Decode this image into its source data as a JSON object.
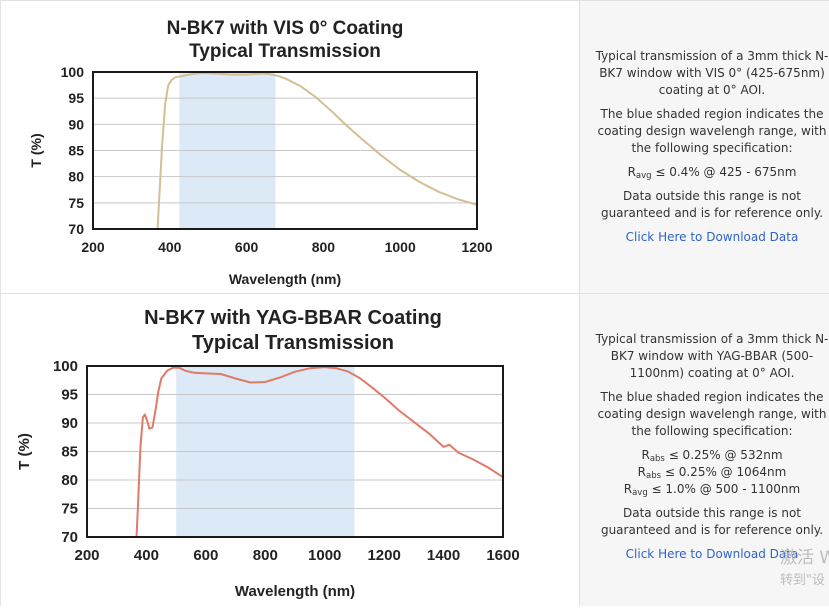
{
  "chart_data": [
    {
      "type": "line",
      "title": "N-BK7 with VIS 0° Coating",
      "subtitle": "Typical Transmission",
      "xlabel": "Wavelength (nm)",
      "ylabel": "T (%)",
      "xlim": [
        200,
        1200
      ],
      "ylim": [
        70,
        100
      ],
      "xticks": [
        200,
        400,
        600,
        800,
        1000,
        1200
      ],
      "yticks": [
        70,
        75,
        80,
        85,
        90,
        95,
        100
      ],
      "grid": "horizontal",
      "shaded_band": [
        425,
        675
      ],
      "colors": {
        "line": "#d4bf94",
        "band": "#dce9f6",
        "grid": "#c8c8c8"
      },
      "series": [
        {
          "x": [
            365,
            372,
            380,
            388,
            396,
            405,
            415,
            430,
            450,
            480,
            520,
            560,
            600,
            640,
            660,
            680,
            700,
            740,
            780,
            820,
            860,
            900,
            950,
            1000,
            1050,
            1100,
            1150,
            1200
          ],
          "y": [
            66,
            75,
            86,
            94,
            97.5,
            98.5,
            99,
            99.2,
            99.5,
            99.8,
            99.7,
            99.5,
            99.5,
            99.7,
            99.6,
            99.3,
            98.8,
            97.3,
            95.2,
            92.6,
            89.8,
            87.2,
            84.1,
            81.3,
            79,
            77.1,
            75.7,
            74.6
          ]
        }
      ]
    },
    {
      "type": "line",
      "title": "N-BK7 with YAG-BBAR Coating",
      "subtitle": "Typical Transmission",
      "xlabel": "Wavelength (nm)",
      "ylabel": "T (%)",
      "xlim": [
        200,
        1600
      ],
      "ylim": [
        70,
        100
      ],
      "xticks": [
        200,
        400,
        600,
        800,
        1000,
        1200,
        1400,
        1600
      ],
      "yticks": [
        70,
        75,
        80,
        85,
        90,
        95,
        100
      ],
      "grid": "horizontal",
      "shaded_band": [
        500,
        1100
      ],
      "colors": {
        "line": "#e07a6a",
        "band": "#dce9f6",
        "grid": "#c8c8c8"
      },
      "series": [
        {
          "x": [
            365,
            372,
            380,
            388,
            395,
            402,
            410,
            420,
            430,
            440,
            450,
            470,
            490,
            510,
            530,
            560,
            600,
            650,
            700,
            750,
            800,
            850,
            900,
            950,
            1000,
            1040,
            1080,
            1120,
            1160,
            1200,
            1250,
            1300,
            1350,
            1400,
            1420,
            1450,
            1500,
            1550,
            1600
          ],
          "y": [
            68,
            76,
            86,
            91,
            91.5,
            90.5,
            89,
            89.2,
            92,
            95.5,
            97.8,
            99.2,
            99.7,
            99.7,
            99.2,
            98.8,
            98.7,
            98.6,
            97.8,
            97.1,
            97.2,
            98,
            99,
            99.6,
            99.8,
            99.6,
            99,
            97.8,
            96.2,
            94.5,
            92.2,
            90.2,
            88.2,
            85.8,
            86.2,
            84.8,
            83.6,
            82.2,
            80.5
          ]
        }
      ]
    }
  ],
  "panel1": {
    "p1": "Typical transmission of a 3mm thick N-BK7 window with VIS 0° (425-675nm) coating at 0° AOI.",
    "p2": "The blue shaded region indicates the coating design wavelengh range, with the following specification:",
    "spec1_sym": "R",
    "spec1_sub": "avg",
    "spec1_rest": " ≤ 0.4% @ 425 - 675nm",
    "p3": "Data outside this range is not guaranteed and is for reference only.",
    "link": "Click Here to Download Data"
  },
  "panel2": {
    "p1": "Typical transmission of a 3mm thick N-BK7 window with YAG-BBAR (500-1100nm) coating at 0° AOI.",
    "p2": "The blue shaded region indicates the coating design wavelengh range, with the following specification:",
    "spec1_sym": "R",
    "spec1_sub": "abs",
    "spec1_rest": " ≤ 0.25% @ 532nm",
    "spec2_sym": "R",
    "spec2_sub": "abs",
    "spec2_rest": " ≤ 0.25% @ 1064nm",
    "spec3_sym": "R",
    "spec3_sub": "avg",
    "spec3_rest": " ≤ 1.0% @ 500 - 1100nm",
    "p3": "Data outside this range is not guaranteed and is for reference only.",
    "link": "Click Here to Download Data"
  },
  "watermark": {
    "line1": "激活 W",
    "line2": "转到\"设"
  }
}
